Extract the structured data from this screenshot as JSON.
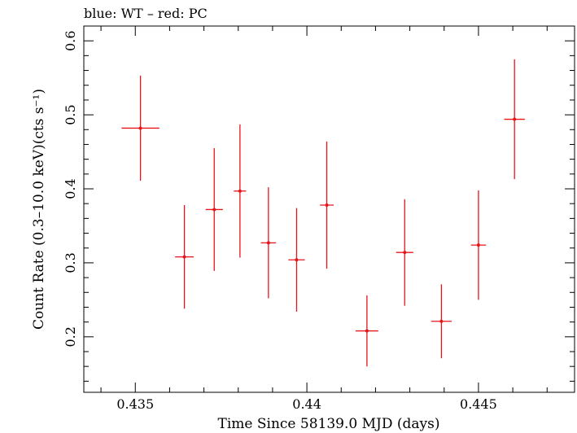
{
  "chart_data": {
    "type": "scatter",
    "title": "blue: WT – red: PC",
    "xlabel": "Time Since 58139.0 MJD (days)",
    "ylabel": "Count Rate (0.3–10.0 keV)(cts s⁻¹)",
    "xlim": [
      0.4335,
      0.4478
    ],
    "ylim": [
      0.125,
      0.62
    ],
    "xticks": [
      0.435,
      0.44,
      0.445
    ],
    "xtick_labels": [
      "0.435",
      "0.44",
      "0.445"
    ],
    "yticks": [
      0.2,
      0.3,
      0.4,
      0.5,
      0.6
    ],
    "ytick_labels": [
      "0.2",
      "0.3",
      "0.4",
      "0.5",
      "0.6"
    ],
    "grid": false,
    "series": [
      {
        "color": "#e8141b",
        "points": [
          {
            "x": 0.43515,
            "xerr": 0.00055,
            "y": 0.482,
            "yerr": 0.071
          },
          {
            "x": 0.43643,
            "xerr": 0.00027,
            "y": 0.308,
            "yerr": 0.07
          },
          {
            "x": 0.4373,
            "xerr": 0.00025,
            "y": 0.372,
            "yerr": 0.083
          },
          {
            "x": 0.43805,
            "xerr": 0.00018,
            "y": 0.397,
            "yerr": 0.09
          },
          {
            "x": 0.43888,
            "xerr": 0.00022,
            "y": 0.327,
            "yerr": 0.075
          },
          {
            "x": 0.4397,
            "xerr": 0.00024,
            "y": 0.304,
            "yerr": 0.07
          },
          {
            "x": 0.44058,
            "xerr": 0.0002,
            "y": 0.378,
            "yerr": 0.086
          },
          {
            "x": 0.44175,
            "xerr": 0.00033,
            "y": 0.208,
            "yerr": 0.048
          },
          {
            "x": 0.44285,
            "xerr": 0.00025,
            "y": 0.314,
            "yerr": 0.072
          },
          {
            "x": 0.44392,
            "xerr": 0.0003,
            "y": 0.221,
            "yerr": 0.05
          },
          {
            "x": 0.445,
            "xerr": 0.00022,
            "y": 0.324,
            "yerr": 0.074
          },
          {
            "x": 0.44605,
            "xerr": 0.0003,
            "y": 0.494,
            "yerr": 0.081
          }
        ]
      }
    ]
  }
}
